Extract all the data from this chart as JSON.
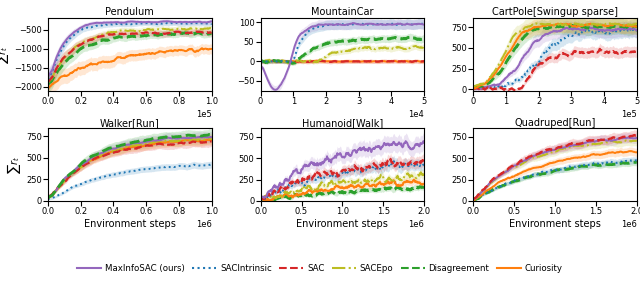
{
  "subplots": [
    {
      "title": "Pendulum",
      "xlim": [
        0,
        100000.0
      ],
      "ylim": [
        -2100,
        -200
      ],
      "ylabel": "$\\sum r_t$",
      "xlabel": "",
      "xscale_label": "\\times10^5"
    },
    {
      "title": "MountainCar",
      "xlim": [
        0,
        50000.0
      ],
      "ylim": [
        -75,
        110
      ],
      "ylabel": "",
      "xlabel": "",
      "xscale_label": "\\times10^4"
    },
    {
      "title": "CartPole[Swingup sparse]",
      "xlim": [
        0,
        500000.0
      ],
      "ylim": [
        -20,
        860
      ],
      "ylabel": "",
      "xlabel": "",
      "xscale_label": "\\times10^5"
    },
    {
      "title": "Walker[Run]",
      "xlim": [
        0,
        1000000.0
      ],
      "ylim": [
        0,
        840
      ],
      "ylabel": "$\\sum r_t$",
      "xlabel": "Environment steps",
      "xscale_label": "\\times10^6"
    },
    {
      "title": "Humanoid[Walk]",
      "xlim": [
        0,
        2000000.0
      ],
      "ylim": [
        0,
        850
      ],
      "ylabel": "",
      "xlabel": "Environment steps",
      "xscale_label": "\\times10^6"
    },
    {
      "title": "Quadruped[Run]",
      "xlim": [
        0,
        2000000.0
      ],
      "ylim": [
        0,
        850
      ],
      "ylabel": "",
      "xlabel": "Environment steps",
      "xscale_label": "\\times10^6"
    }
  ],
  "colors": {
    "MaxInfoSAC": "#9467bd",
    "SACIntrinsic": "#1f77b4",
    "SAC": "#d62728",
    "SACEpo": "#bcbd22",
    "Disagreement": "#2ca02c",
    "Curiosity": "#ff7f0e"
  },
  "linestyles": {
    "MaxInfoSAC": "-",
    "SACIntrinsic": ":",
    "SAC": "--",
    "SACEpo": "-.",
    "Disagreement": "--",
    "Curiosity": "-"
  },
  "linewidths": {
    "MaxInfoSAC": 1.4,
    "SACIntrinsic": 1.4,
    "SAC": 1.6,
    "SACEpo": 1.4,
    "Disagreement": 2.0,
    "Curiosity": 1.4
  },
  "legend_entries": [
    {
      "label": "MaxInfoSAC (ours)",
      "color": "#9467bd",
      "linestyle": "-"
    },
    {
      "label": "SACIntrinsic",
      "color": "#1f77b4",
      "linestyle": ":"
    },
    {
      "label": "SAC",
      "color": "#d62728",
      "linestyle": "--"
    },
    {
      "label": "SACEpo",
      "color": "#bcbd22",
      "linestyle": "-."
    },
    {
      "label": "Disagreement",
      "color": "#2ca02c",
      "linestyle": "--"
    },
    {
      "label": "Curiosity",
      "color": "#ff7f0e",
      "linestyle": "-"
    }
  ]
}
